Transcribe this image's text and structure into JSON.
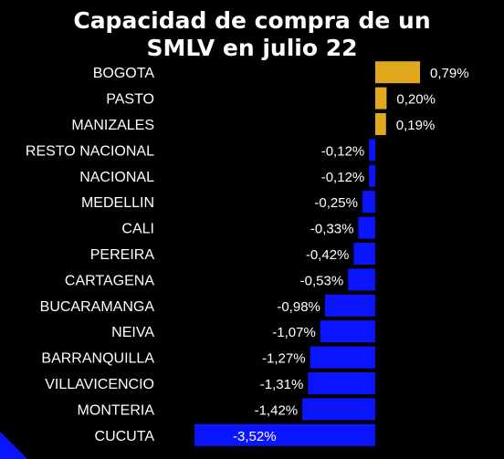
{
  "chart_data": {
    "type": "bar",
    "orientation": "horizontal",
    "title_lines": [
      "Capacidad de compra de un",
      "SMLV en julio 22"
    ],
    "categories": [
      "BOGOTA",
      "PASTO",
      "MANIZALES",
      "RESTO NACIONAL",
      "NACIONAL",
      "MEDELLIN",
      "CALI",
      "PEREIRA",
      "CARTAGENA",
      "BUCARAMANGA",
      "NEIVA",
      "BARRANQUILLA",
      "VILLAVICENCIO",
      "MONTERIA",
      "CUCUTA"
    ],
    "values": [
      0.79,
      0.2,
      0.19,
      -0.12,
      -0.12,
      -0.25,
      -0.33,
      -0.42,
      -0.53,
      -0.98,
      -1.07,
      -1.27,
      -1.31,
      -1.42,
      -3.52
    ],
    "value_labels": [
      "0,79%",
      "0,20%",
      "0,19%",
      "-0,12%",
      "-0,12%",
      "-0,25%",
      "-0,33%",
      "-0,42%",
      "-0,53%",
      "-0,98%",
      "-1,07%",
      "-1,27%",
      "-1,31%",
      "-1,42%",
      "-3,52%"
    ],
    "unit": "%",
    "xlim": [
      -3.52,
      0.79
    ],
    "grid": false,
    "legend": "none",
    "colors": {
      "positive": "#e0a81c",
      "negative": "#0a14ff",
      "background": "#000000",
      "text": "#ffffff"
    }
  }
}
